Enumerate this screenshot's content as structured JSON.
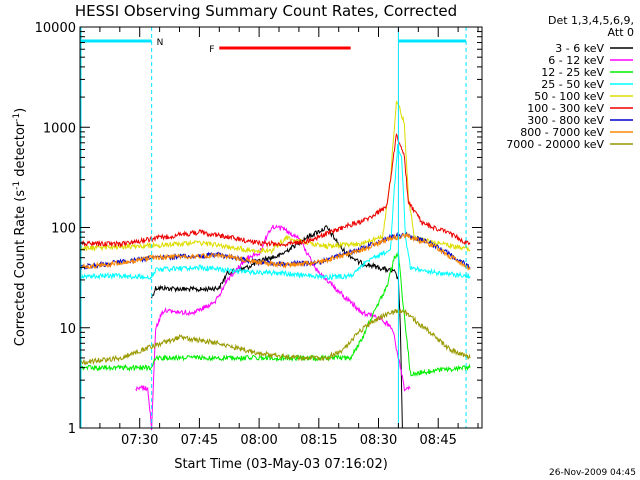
{
  "chart_data": {
    "type": "line",
    "title": "HESSI Observing Summary Count Rates, Corrected",
    "xlabel": "Start Time (03-May-03 07:16:02)",
    "ylabel_main": "Corrected Count Rate (s",
    "ylabel_sup": "-1",
    "ylabel_tail": " detector",
    "ylabel_sup2": "-1",
    "ylabel_end": ")",
    "y_scale": "log",
    "ylim": [
      1,
      10000
    ],
    "y_ticks": [
      1,
      10,
      100,
      1000,
      10000
    ],
    "y_tick_labels": [
      "1",
      "10",
      "100",
      "1000",
      "10000"
    ],
    "xlim_min": [
      0,
      101
    ],
    "x_ticks_min": [
      15,
      30,
      45,
      60,
      75,
      90
    ],
    "x_tick_labels": [
      "07:30",
      "07:45",
      "08:00",
      "08:15",
      "08:30",
      "08:45"
    ],
    "legend_header": [
      "Det 1,3,4,5,6,9,",
      "Att 0"
    ],
    "legend_position": "right",
    "footer_date": "26-Nov-2009 04:45",
    "annotations": [
      {
        "label": "N",
        "color": "#00e5ff",
        "segments": [
          [
            0,
            18
          ],
          [
            80,
            97
          ]
        ]
      },
      {
        "label": "F",
        "color": "#ff0000",
        "segments": [
          [
            35,
            68
          ]
        ]
      }
    ],
    "dashed_markers_min": [
      18,
      97
    ],
    "solid_marker_min": 80,
    "series": [
      {
        "name": "3 - 6 keV",
        "color": "#000000",
        "points": [
          [
            18,
            20
          ],
          [
            19,
            25
          ],
          [
            30,
            24
          ],
          [
            35,
            25
          ],
          [
            37,
            35
          ],
          [
            42,
            40
          ],
          [
            46,
            48
          ],
          [
            50,
            52
          ],
          [
            57,
            80
          ],
          [
            62,
            100
          ],
          [
            66,
            60
          ],
          [
            70,
            45
          ],
          [
            75,
            40
          ],
          [
            79,
            36
          ],
          [
            80,
            30
          ],
          [
            80.5,
            10
          ],
          [
            81,
            1
          ]
        ]
      },
      {
        "name": "6 - 12 keV",
        "color": "#ff00ff",
        "points": [
          [
            14,
            2.5
          ],
          [
            17,
            2.5
          ],
          [
            18,
            1
          ],
          [
            19,
            10
          ],
          [
            21,
            15
          ],
          [
            28,
            14
          ],
          [
            34,
            18
          ],
          [
            37,
            30
          ],
          [
            42,
            50
          ],
          [
            45,
            55
          ],
          [
            48,
            100
          ],
          [
            50,
            100
          ],
          [
            55,
            80
          ],
          [
            59,
            40
          ],
          [
            64,
            25
          ],
          [
            71,
            14
          ],
          [
            76,
            12
          ],
          [
            78.5,
            10
          ],
          [
            80,
            5
          ],
          [
            81.5,
            2.5
          ],
          [
            83,
            2.5
          ]
        ]
      },
      {
        "name": "12 - 25 keV",
        "color": "#00ee00",
        "points": [
          [
            0,
            4
          ],
          [
            18,
            4
          ],
          [
            19,
            5
          ],
          [
            35,
            5
          ],
          [
            60,
            5
          ],
          [
            62,
            5
          ],
          [
            68,
            5
          ],
          [
            71,
            8
          ],
          [
            74,
            15
          ],
          [
            77,
            25
          ],
          [
            79,
            50
          ],
          [
            80,
            55
          ],
          [
            81,
            20
          ],
          [
            83,
            3.5
          ],
          [
            97,
            4
          ],
          [
            98,
            4
          ]
        ]
      },
      {
        "name": "25 - 50 keV",
        "color": "#00ffff",
        "points": [
          [
            0,
            33
          ],
          [
            10,
            33
          ],
          [
            18,
            32
          ],
          [
            19,
            38
          ],
          [
            30,
            40
          ],
          [
            35,
            38
          ],
          [
            42,
            36
          ],
          [
            50,
            35
          ],
          [
            58,
            33
          ],
          [
            62,
            32
          ],
          [
            68,
            33
          ],
          [
            72,
            45
          ],
          [
            76,
            55
          ],
          [
            78,
            60
          ],
          [
            79,
            250
          ],
          [
            79.8,
            650
          ],
          [
            80.8,
            500
          ],
          [
            81.8,
            80
          ],
          [
            83,
            40
          ],
          [
            90,
            35
          ],
          [
            98,
            33
          ]
        ]
      },
      {
        "name": "50 - 100 keV",
        "color": "#dddd00",
        "points": [
          [
            0,
            62
          ],
          [
            18,
            66
          ],
          [
            30,
            70
          ],
          [
            35,
            66
          ],
          [
            42,
            60
          ],
          [
            48,
            58
          ],
          [
            52,
            80
          ],
          [
            56,
            72
          ],
          [
            62,
            65
          ],
          [
            70,
            68
          ],
          [
            76,
            80
          ],
          [
            78,
            300
          ],
          [
            79.5,
            1900
          ],
          [
            81.5,
            1100
          ],
          [
            82.5,
            200
          ],
          [
            84,
            80
          ],
          [
            90,
            70
          ],
          [
            98,
            60
          ]
        ]
      },
      {
        "name": "100 - 300 keV",
        "color": "#ee0000",
        "points": [
          [
            0,
            70
          ],
          [
            10,
            68
          ],
          [
            18,
            77
          ],
          [
            30,
            90
          ],
          [
            36,
            82
          ],
          [
            45,
            70
          ],
          [
            52,
            68
          ],
          [
            58,
            75
          ],
          [
            66,
            100
          ],
          [
            72,
            120
          ],
          [
            77,
            160
          ],
          [
            78,
            300
          ],
          [
            79.5,
            850
          ],
          [
            81.5,
            500
          ],
          [
            82.5,
            180
          ],
          [
            86,
            110
          ],
          [
            92,
            90
          ],
          [
            98,
            68
          ]
        ]
      },
      {
        "name": "300 - 800 keV",
        "color": "#0000cc",
        "points": [
          [
            0,
            40
          ],
          [
            10,
            45
          ],
          [
            18,
            50
          ],
          [
            35,
            53
          ],
          [
            45,
            45
          ],
          [
            52,
            43
          ],
          [
            60,
            45
          ],
          [
            70,
            60
          ],
          [
            78,
            80
          ],
          [
            82,
            85
          ],
          [
            88,
            70
          ],
          [
            95,
            48
          ],
          [
            98,
            40
          ]
        ]
      },
      {
        "name": "800 - 7000 keV",
        "color": "#ff8800",
        "points": [
          [
            0,
            40
          ],
          [
            10,
            44
          ],
          [
            18,
            50
          ],
          [
            35,
            53
          ],
          [
            45,
            45
          ],
          [
            52,
            42
          ],
          [
            60,
            45
          ],
          [
            70,
            58
          ],
          [
            78,
            78
          ],
          [
            82,
            83
          ],
          [
            88,
            68
          ],
          [
            95,
            46
          ],
          [
            98,
            38
          ]
        ]
      },
      {
        "name": "7000 - 20000 keV",
        "color": "#999900",
        "points": [
          [
            0,
            4.5
          ],
          [
            10,
            5
          ],
          [
            18,
            6.5
          ],
          [
            25,
            8
          ],
          [
            35,
            7
          ],
          [
            45,
            5.5
          ],
          [
            55,
            5
          ],
          [
            62,
            5
          ],
          [
            66,
            6
          ],
          [
            70,
            9
          ],
          [
            74,
            12
          ],
          [
            78,
            14
          ],
          [
            81,
            15
          ],
          [
            84,
            12
          ],
          [
            88,
            9
          ],
          [
            93,
            6
          ],
          [
            98,
            5
          ]
        ]
      }
    ]
  }
}
